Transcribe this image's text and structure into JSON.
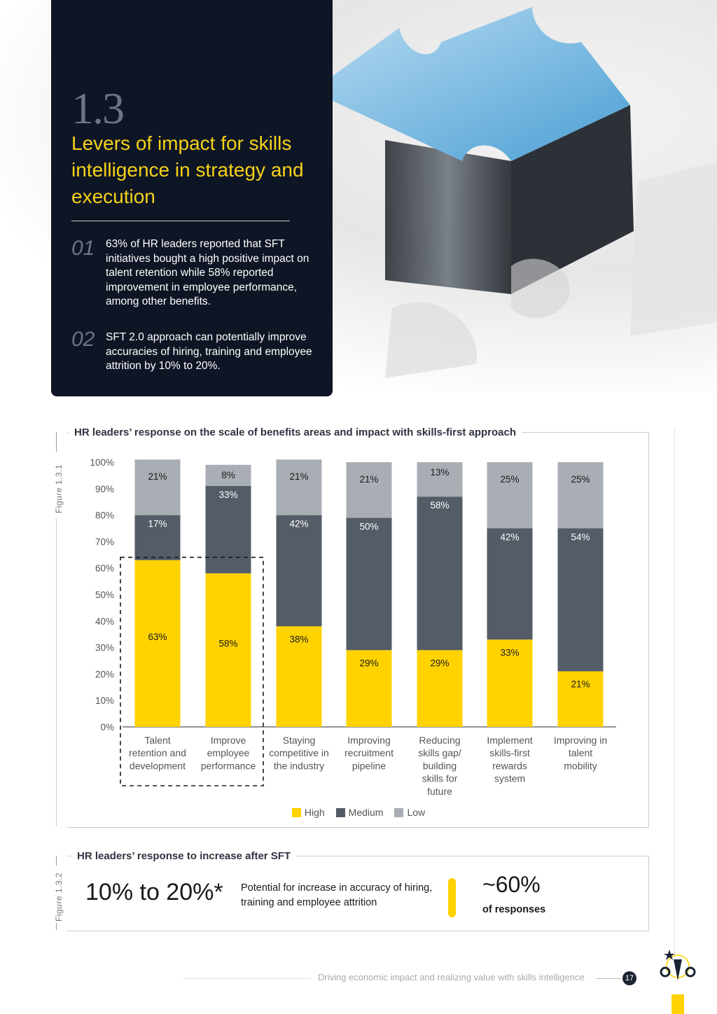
{
  "section": {
    "number": "1.3",
    "title": "Levers of impact for skills intelligence in strategy and execution"
  },
  "points": [
    {
      "num": "01",
      "text": "63% of HR leaders reported that SFT initiatives bought a high positive impact on talent retention while 58% reported improvement in employee performance, among other benefits."
    },
    {
      "num": "02",
      "text": "SFT 2.0 approach can potentially improve accuracies of hiring, training and employee attrition by 10% to 20%."
    }
  ],
  "figure1": {
    "label": "Figure 1.3.1",
    "title": "HR leaders’ response on the scale of benefits areas and impact with skills-first approach"
  },
  "figure2": {
    "label": "Figure 1.3.2",
    "title": "HR leaders’ response to increase after SFT",
    "big_value": "10% to 20%*",
    "description": "Potential for increase in accuracy of hiring, training and employee attrition",
    "responses_value": "~60%",
    "responses_label": "of responses"
  },
  "chart_data": {
    "type": "bar",
    "stacked": true,
    "categories": [
      [
        "Talent",
        "retention and",
        "development"
      ],
      [
        "Improve",
        "employee",
        "performance"
      ],
      [
        "Staying",
        "competitive in",
        "the industry"
      ],
      [
        "Improving",
        "recruitment",
        "pipeline"
      ],
      [
        "Reducing",
        "skills gap/",
        "building",
        "skills for",
        "future"
      ],
      [
        "Implement",
        "skills-first",
        "rewards",
        "system"
      ],
      [
        "Improving in",
        "talent",
        "mobility"
      ]
    ],
    "series": [
      {
        "name": "High",
        "color": "#ffd200",
        "values": [
          63,
          58,
          38,
          29,
          29,
          33,
          21
        ]
      },
      {
        "name": "Medium",
        "color": "#545c67",
        "values": [
          17,
          33,
          42,
          50,
          58,
          42,
          54
        ]
      },
      {
        "name": "Low",
        "color": "#a9aeb5",
        "values": [
          21,
          8,
          21,
          21,
          13,
          25,
          25
        ]
      }
    ],
    "yticks": [
      "0%",
      "10%",
      "20%",
      "30%",
      "40%",
      "50%",
      "60%",
      "70%",
      "80%",
      "90%",
      "100%"
    ],
    "ylim": [
      0,
      100
    ],
    "highlighted_categories": [
      0,
      1
    ],
    "legend_position": "bottom"
  },
  "footer": {
    "text": "Driving economic impact and realizing value with skills intelligence",
    "page": "17"
  },
  "icons": [
    "puzzle-image",
    "lightbulb-gears-icon"
  ]
}
